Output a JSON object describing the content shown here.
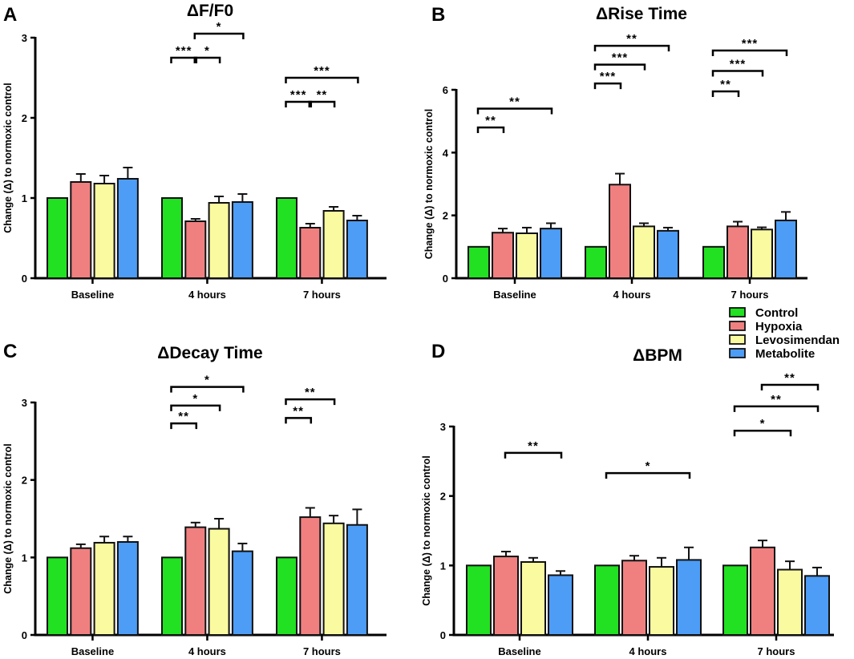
{
  "chart_data": [
    {
      "type": "bar",
      "panel": "A",
      "title": "ΔF/F0",
      "ylabel": "Change (Δ) to normoxic control",
      "ylim": [
        0,
        3
      ],
      "yticks": [
        0,
        1,
        2,
        3
      ],
      "categories": [
        "Baseline",
        "4 hours",
        "7 hours"
      ],
      "series": [
        {
          "name": "Control",
          "values": [
            1,
            1,
            1
          ],
          "sem": [
            0,
            0,
            0
          ]
        },
        {
          "name": "Hypoxia",
          "values": [
            1.2,
            0.71,
            0.63
          ],
          "sem": [
            0.1,
            0.03,
            0.05
          ]
        },
        {
          "name": "Levosimendan",
          "values": [
            1.18,
            0.94,
            0.84
          ],
          "sem": [
            0.1,
            0.08,
            0.05
          ]
        },
        {
          "name": "Metabolite",
          "values": [
            1.24,
            0.95,
            0.72
          ],
          "sem": [
            0.14,
            0.1,
            0.06
          ]
        }
      ],
      "significance": [
        {
          "category": 1,
          "from": 0,
          "to": 1,
          "label": "***",
          "y": 2.75
        },
        {
          "category": 1,
          "from": 1,
          "to": 2,
          "label": "*",
          "y": 2.75
        },
        {
          "category": 1,
          "from": 1,
          "to": 3,
          "label": "*",
          "y": 3.05
        },
        {
          "category": 2,
          "from": 0,
          "to": 1,
          "label": "***",
          "y": 2.2
        },
        {
          "category": 2,
          "from": 1,
          "to": 2,
          "label": "**",
          "y": 2.2
        },
        {
          "category": 2,
          "from": 0,
          "to": 3,
          "label": "***",
          "y": 2.5
        }
      ]
    },
    {
      "type": "bar",
      "panel": "B",
      "title": "ΔRise Time",
      "ylabel": "Change (Δ) to normoxic control",
      "ylim": [
        0,
        6
      ],
      "yticks": [
        0,
        2,
        4,
        6
      ],
      "categories": [
        "Baseline",
        "4 hours",
        "7 hours"
      ],
      "series": [
        {
          "name": "Control",
          "values": [
            1,
            1,
            1
          ],
          "sem": [
            0,
            0,
            0
          ]
        },
        {
          "name": "Hypoxia",
          "values": [
            1.45,
            2.98,
            1.65
          ],
          "sem": [
            0.13,
            0.35,
            0.15
          ]
        },
        {
          "name": "Levosimendan",
          "values": [
            1.43,
            1.65,
            1.55
          ],
          "sem": [
            0.18,
            0.1,
            0.07
          ]
        },
        {
          "name": "Metabolite",
          "values": [
            1.58,
            1.51,
            1.84
          ],
          "sem": [
            0.17,
            0.1,
            0.27
          ]
        }
      ],
      "significance": [
        {
          "category": 0,
          "from": 0,
          "to": 1,
          "label": "**",
          "y": 4.8
        },
        {
          "category": 0,
          "from": 0,
          "to": 3,
          "label": "**",
          "y": 5.4
        },
        {
          "category": 1,
          "from": 0,
          "to": 1,
          "label": "***",
          "y": 6.2
        },
        {
          "category": 1,
          "from": 0,
          "to": 2,
          "label": "***",
          "y": 6.8
        },
        {
          "category": 1,
          "from": 0,
          "to": 3,
          "label": "**",
          "y": 7.4
        },
        {
          "category": 2,
          "from": 0,
          "to": 1,
          "label": "**",
          "y": 5.95
        },
        {
          "category": 2,
          "from": 0,
          "to": 2,
          "label": "***",
          "y": 6.6
        },
        {
          "category": 2,
          "from": 0,
          "to": 3,
          "label": "***",
          "y": 7.25
        }
      ]
    },
    {
      "type": "bar",
      "panel": "C",
      "title": "ΔDecay Time",
      "ylabel": "Change (Δ) to normoxic control",
      "ylim": [
        0,
        3
      ],
      "yticks": [
        0,
        1,
        2,
        3
      ],
      "categories": [
        "Baseline",
        "4 hours",
        "7 hours"
      ],
      "series": [
        {
          "name": "Control",
          "values": [
            1,
            1,
            1
          ],
          "sem": [
            0,
            0,
            0
          ]
        },
        {
          "name": "Hypoxia",
          "values": [
            1.12,
            1.39,
            1.52
          ],
          "sem": [
            0.05,
            0.06,
            0.12
          ]
        },
        {
          "name": "Levosimendan",
          "values": [
            1.19,
            1.37,
            1.44
          ],
          "sem": [
            0.08,
            0.13,
            0.1
          ]
        },
        {
          "name": "Metabolite",
          "values": [
            1.2,
            1.08,
            1.42
          ],
          "sem": [
            0.07,
            0.1,
            0.2
          ]
        }
      ],
      "significance": [
        {
          "category": 1,
          "from": 0,
          "to": 1,
          "label": "**",
          "y": 2.73
        },
        {
          "category": 1,
          "from": 0,
          "to": 2,
          "label": "*",
          "y": 2.96
        },
        {
          "category": 1,
          "from": 0,
          "to": 3,
          "label": "*",
          "y": 3.2
        },
        {
          "category": 2,
          "from": 0,
          "to": 1,
          "label": "**",
          "y": 2.8
        },
        {
          "category": 2,
          "from": 0,
          "to": 2,
          "label": "**",
          "y": 3.04
        }
      ]
    },
    {
      "type": "bar",
      "panel": "D",
      "title": "ΔBPM",
      "ylabel": "Change (Δ) to normoxic control",
      "ylim": [
        0,
        3
      ],
      "yticks": [
        0,
        1,
        2,
        3
      ],
      "categories": [
        "Baseline",
        "4 hours",
        "7 hours"
      ],
      "series": [
        {
          "name": "Control",
          "values": [
            1,
            1,
            1
          ],
          "sem": [
            0,
            0,
            0
          ]
        },
        {
          "name": "Hypoxia",
          "values": [
            1.13,
            1.07,
            1.26
          ],
          "sem": [
            0.07,
            0.07,
            0.1
          ]
        },
        {
          "name": "Levosimendan",
          "values": [
            1.05,
            0.98,
            0.94
          ],
          "sem": [
            0.06,
            0.13,
            0.12
          ]
        },
        {
          "name": "Metabolite",
          "values": [
            0.86,
            1.08,
            0.85
          ],
          "sem": [
            0.06,
            0.18,
            0.12
          ]
        }
      ],
      "significance": [
        {
          "category": 0,
          "from": 1,
          "to": 3,
          "label": "**",
          "y": 2.62
        },
        {
          "category": 1,
          "from": 0,
          "to": 3,
          "label": "*",
          "y": 2.33
        },
        {
          "category": 2,
          "from": 0,
          "to": 2,
          "label": "*",
          "y": 2.94
        },
        {
          "category": 2,
          "from": 0,
          "to": 3,
          "label": "**",
          "y": 3.29
        },
        {
          "category": 2,
          "from": 1,
          "to": 3,
          "label": "**",
          "y": 3.6
        }
      ]
    }
  ],
  "legend": {
    "placement": "right, between panels B and D",
    "items": [
      {
        "name": "Control",
        "color": "#22e022"
      },
      {
        "name": "Hypoxia",
        "color": "#f08080"
      },
      {
        "name": "Levosimendan",
        "color": "#fafaa0"
      },
      {
        "name": "Metabolite",
        "color": "#4d9cf5"
      }
    ]
  }
}
